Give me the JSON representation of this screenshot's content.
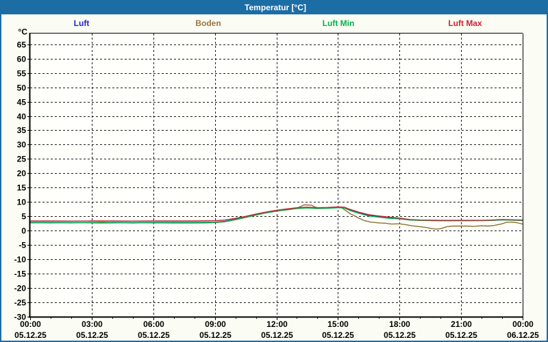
{
  "window": {
    "title": "Temperatur [°C]",
    "titlebar_color": "#1d6da5",
    "border_color": "#1d6da5",
    "background_color": "#fbfcf3"
  },
  "legend": [
    {
      "label": "Luft",
      "color": "#2222cc"
    },
    {
      "label": "Boden",
      "color": "#9a7440"
    },
    {
      "label": "Luft Min",
      "color": "#00b050"
    },
    {
      "label": "Luft Max",
      "color": "#cc2238"
    }
  ],
  "chart_data": {
    "type": "line",
    "title": "Temperatur [°C]",
    "unit_label": "°C",
    "grid": "dashed",
    "legend_position": "top",
    "ylim": [
      -30,
      68.75
    ],
    "xlim": [
      0,
      24
    ],
    "y_ticks": [
      65,
      60,
      55,
      50,
      45,
      40,
      35,
      30,
      25,
      20,
      15,
      10,
      5,
      0,
      -5,
      -10,
      -15,
      -20,
      -25,
      -30
    ],
    "x_ticks": [
      {
        "hour": 0,
        "time": "00:00",
        "date": "05.12.25"
      },
      {
        "hour": 3,
        "time": "03:00",
        "date": "05.12.25"
      },
      {
        "hour": 6,
        "time": "06:00",
        "date": "05.12.25"
      },
      {
        "hour": 9,
        "time": "09:00",
        "date": "05.12.25"
      },
      {
        "hour": 12,
        "time": "12:00",
        "date": "05.12.25"
      },
      {
        "hour": 15,
        "time": "15:00",
        "date": "05.12.25"
      },
      {
        "hour": 18,
        "time": "18:00",
        "date": "05.12.25"
      },
      {
        "hour": 21,
        "time": "21:00",
        "date": "05.12.25"
      },
      {
        "hour": 24,
        "time": "00:00",
        "date": "06.12.25"
      }
    ],
    "x_minor_every_hours": 1,
    "series": [
      {
        "name": "Luft",
        "color": "#2222cc",
        "points": [
          [
            0,
            2.9
          ],
          [
            1,
            2.9
          ],
          [
            2,
            2.85
          ],
          [
            3,
            2.9
          ],
          [
            4,
            2.9
          ],
          [
            5,
            2.85
          ],
          [
            6,
            2.9
          ],
          [
            7,
            2.9
          ],
          [
            8,
            2.9
          ],
          [
            9,
            3.0
          ],
          [
            9.5,
            3.3
          ],
          [
            10,
            4.0
          ],
          [
            10.5,
            4.8
          ],
          [
            11,
            5.6
          ],
          [
            11.5,
            6.3
          ],
          [
            12,
            6.9
          ],
          [
            12.5,
            7.4
          ],
          [
            13,
            7.8
          ],
          [
            13.5,
            8.0
          ],
          [
            14,
            7.8
          ],
          [
            14.5,
            7.9
          ],
          [
            15,
            8.1
          ],
          [
            15.3,
            8.0
          ],
          [
            15.6,
            7.2
          ],
          [
            16,
            6.3
          ],
          [
            16.5,
            5.3
          ],
          [
            17,
            4.8
          ],
          [
            17.5,
            4.4
          ],
          [
            18,
            4.2
          ],
          [
            18.5,
            3.8
          ],
          [
            19,
            3.6
          ],
          [
            19.5,
            3.55
          ],
          [
            20,
            3.5
          ],
          [
            21,
            3.5
          ],
          [
            22,
            3.55
          ],
          [
            22.5,
            3.6
          ],
          [
            23,
            3.8
          ],
          [
            23.5,
            3.7
          ],
          [
            24,
            3.6
          ]
        ]
      },
      {
        "name": "Boden",
        "color": "#8b6d2e",
        "points": [
          [
            0,
            2.7
          ],
          [
            0.5,
            2.75
          ],
          [
            1,
            2.7
          ],
          [
            1.5,
            2.75
          ],
          [
            2,
            2.7
          ],
          [
            2.5,
            2.8
          ],
          [
            3,
            2.7
          ],
          [
            3.5,
            2.65
          ],
          [
            4,
            2.7
          ],
          [
            4.5,
            2.75
          ],
          [
            5,
            2.65
          ],
          [
            5.5,
            2.75
          ],
          [
            6,
            2.7
          ],
          [
            6.5,
            2.7
          ],
          [
            7,
            2.65
          ],
          [
            7.5,
            2.7
          ],
          [
            8,
            2.65
          ],
          [
            8.5,
            2.7
          ],
          [
            9,
            2.8
          ],
          [
            9.5,
            3.1
          ],
          [
            10,
            3.8
          ],
          [
            10.5,
            4.6
          ],
          [
            11,
            5.4
          ],
          [
            11.5,
            6.2
          ],
          [
            12,
            6.8
          ],
          [
            12.3,
            7.1
          ],
          [
            12.6,
            7.3
          ],
          [
            13,
            7.8
          ],
          [
            13.2,
            8.5
          ],
          [
            13.35,
            9.0
          ],
          [
            13.7,
            8.9
          ],
          [
            13.9,
            8.2
          ],
          [
            14.1,
            7.8
          ],
          [
            14.4,
            7.9
          ],
          [
            14.7,
            8.0
          ],
          [
            15,
            8.1
          ],
          [
            15.2,
            7.9
          ],
          [
            15.4,
            6.9
          ],
          [
            15.6,
            5.9
          ],
          [
            15.8,
            5.2
          ],
          [
            16,
            4.4
          ],
          [
            16.3,
            3.5
          ],
          [
            16.6,
            3.0
          ],
          [
            17,
            2.7
          ],
          [
            17.3,
            2.6
          ],
          [
            17.6,
            2.3
          ],
          [
            18,
            2.4
          ],
          [
            18.3,
            2.1
          ],
          [
            18.6,
            1.7
          ],
          [
            19,
            1.4
          ],
          [
            19.3,
            1.1
          ],
          [
            19.6,
            0.7
          ],
          [
            19.8,
            0.5
          ],
          [
            20,
            0.7
          ],
          [
            20.3,
            1.4
          ],
          [
            20.6,
            1.6
          ],
          [
            21,
            1.6
          ],
          [
            21.3,
            1.6
          ],
          [
            21.6,
            1.5
          ],
          [
            22,
            1.7
          ],
          [
            22.3,
            1.6
          ],
          [
            22.6,
            1.8
          ],
          [
            23,
            2.4
          ],
          [
            23.2,
            2.9
          ],
          [
            23.5,
            3.0
          ],
          [
            23.7,
            2.8
          ],
          [
            24,
            2.3
          ]
        ]
      },
      {
        "name": "Luft Min",
        "color": "#00b050",
        "points": [
          [
            0,
            2.8
          ],
          [
            1,
            2.8
          ],
          [
            2,
            2.75
          ],
          [
            3,
            2.85
          ],
          [
            3.5,
            3.0
          ],
          [
            4,
            2.8
          ],
          [
            5,
            2.75
          ],
          [
            6,
            2.8
          ],
          [
            7,
            2.8
          ],
          [
            8,
            2.8
          ],
          [
            9,
            2.9
          ],
          [
            9.5,
            3.2
          ],
          [
            10,
            3.9
          ],
          [
            10.5,
            4.7
          ],
          [
            11,
            5.5
          ],
          [
            11.5,
            6.2
          ],
          [
            12,
            6.8
          ],
          [
            12.5,
            7.3
          ],
          [
            13,
            7.7
          ],
          [
            13.5,
            7.9
          ],
          [
            14,
            7.7
          ],
          [
            14.5,
            7.8
          ],
          [
            15,
            8.0
          ],
          [
            15.3,
            7.9
          ],
          [
            15.6,
            7.0
          ],
          [
            16,
            6.1
          ],
          [
            16.5,
            5.1
          ],
          [
            17,
            4.7
          ],
          [
            17.5,
            4.3
          ],
          [
            18,
            4.1
          ],
          [
            18.5,
            3.7
          ],
          [
            19,
            3.55
          ],
          [
            20,
            3.45
          ],
          [
            21,
            3.45
          ],
          [
            22,
            3.5
          ],
          [
            22.5,
            3.55
          ],
          [
            23,
            3.75
          ],
          [
            23.5,
            3.65
          ],
          [
            24,
            3.55
          ]
        ]
      },
      {
        "name": "Luft Max",
        "color": "#c02535",
        "points": [
          [
            0,
            3.4
          ],
          [
            1,
            3.4
          ],
          [
            2,
            3.35
          ],
          [
            3,
            3.4
          ],
          [
            4,
            3.4
          ],
          [
            5,
            3.35
          ],
          [
            6,
            3.4
          ],
          [
            7,
            3.4
          ],
          [
            8,
            3.4
          ],
          [
            9,
            3.5
          ],
          [
            9.5,
            3.7
          ],
          [
            10,
            4.3
          ],
          [
            10.5,
            5.0
          ],
          [
            11,
            5.8
          ],
          [
            11.5,
            6.5
          ],
          [
            12,
            7.1
          ],
          [
            12.5,
            7.6
          ],
          [
            13,
            8.0
          ],
          [
            13.5,
            8.2
          ],
          [
            14,
            8.0
          ],
          [
            14.5,
            8.1
          ],
          [
            15,
            8.3
          ],
          [
            15.3,
            8.2
          ],
          [
            15.6,
            7.4
          ],
          [
            16,
            6.5
          ],
          [
            16.5,
            5.6
          ],
          [
            17,
            5.1
          ],
          [
            17.5,
            4.7
          ],
          [
            18,
            4.4
          ],
          [
            18.5,
            3.9
          ],
          [
            19,
            3.7
          ],
          [
            20,
            3.6
          ],
          [
            21,
            3.6
          ],
          [
            22,
            3.6
          ],
          [
            22.5,
            3.7
          ],
          [
            23,
            3.9
          ],
          [
            23.5,
            3.8
          ],
          [
            24,
            3.7
          ]
        ]
      }
    ]
  }
}
